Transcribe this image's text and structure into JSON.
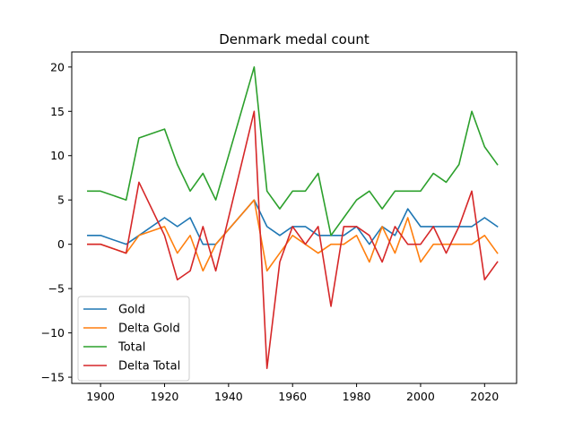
{
  "chart_data": {
    "type": "line",
    "title": "Denmark medal count",
    "xlabel": "",
    "ylabel": "",
    "xlim": [
      1891,
      2030
    ],
    "ylim": [
      -15.7,
      21.7
    ],
    "xticks": [
      1900,
      1920,
      1940,
      1960,
      1980,
      2000,
      2020
    ],
    "yticks": [
      -15,
      -10,
      -5,
      0,
      5,
      10,
      15,
      20
    ],
    "grid": false,
    "legend_position": "lower-left",
    "x": [
      1896,
      1900,
      1908,
      1912,
      1920,
      1924,
      1928,
      1932,
      1936,
      1948,
      1952,
      1956,
      1960,
      1964,
      1968,
      1972,
      1976,
      1980,
      1984,
      1988,
      1992,
      1996,
      2000,
      2004,
      2008,
      2012,
      2016,
      2020,
      2024
    ],
    "series": [
      {
        "name": "Gold",
        "color": "#1f77b4",
        "values": [
          1,
          1,
          0,
          1,
          3,
          2,
          3,
          0,
          0,
          5,
          2,
          1,
          2,
          2,
          1,
          1,
          1,
          2,
          0,
          2,
          1,
          4,
          2,
          2,
          2,
          2,
          2,
          3,
          2
        ]
      },
      {
        "name": "Delta Gold",
        "color": "#ff7f0e",
        "values": [
          0,
          0,
          -1,
          1,
          2,
          -1,
          1,
          -3,
          0,
          5,
          -3,
          -1,
          1,
          0,
          -1,
          0,
          0,
          1,
          -2,
          2,
          -1,
          3,
          -2,
          0,
          0,
          0,
          0,
          1,
          -1
        ]
      },
      {
        "name": "Total",
        "color": "#2ca02c",
        "values": [
          6,
          6,
          5,
          12,
          13,
          9,
          6,
          8,
          5,
          20,
          6,
          4,
          6,
          6,
          8,
          1,
          3,
          5,
          6,
          4,
          6,
          6,
          6,
          8,
          7,
          9,
          15,
          11,
          9
        ]
      },
      {
        "name": "Delta Total",
        "color": "#d62728",
        "values": [
          0,
          0,
          -1,
          7,
          1,
          -4,
          -3,
          2,
          -3,
          15,
          -14,
          -2,
          2,
          0,
          2,
          -7,
          2,
          2,
          1,
          -2,
          2,
          0,
          0,
          2,
          -1,
          2,
          6,
          -4,
          -2
        ]
      }
    ]
  }
}
